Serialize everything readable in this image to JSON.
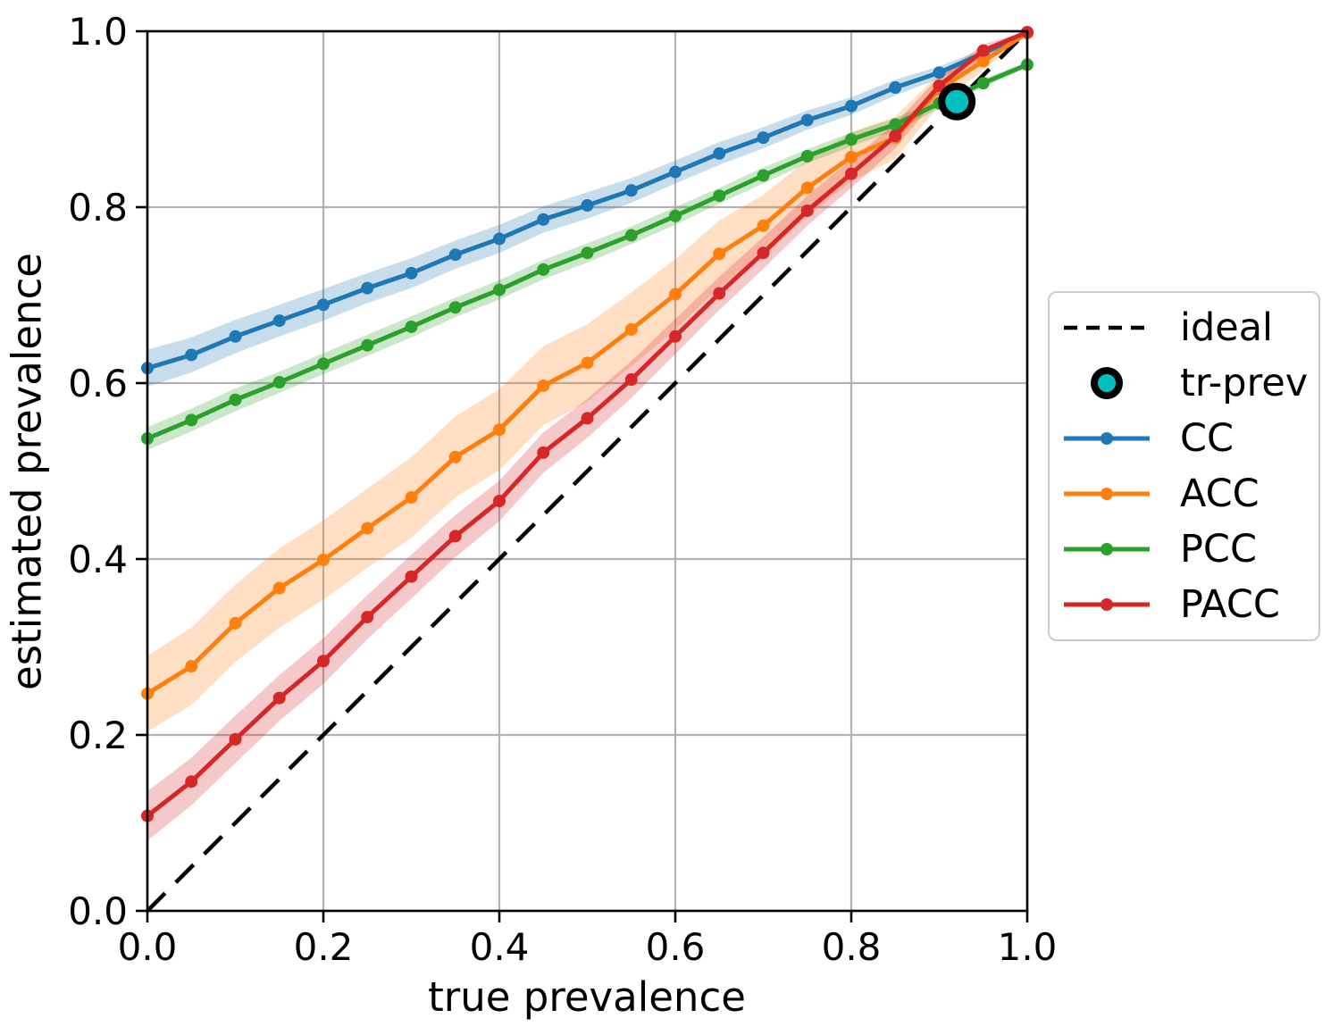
{
  "figure": {
    "background": "#ffffff"
  },
  "chart_data": {
    "type": "line",
    "title": "",
    "xlabel": "true prevalence",
    "ylabel": "estimated prevalence",
    "xlim": [
      0.0,
      1.0
    ],
    "ylim": [
      0.0,
      1.0
    ],
    "grid": true,
    "xticks": [
      "0.0",
      "0.2",
      "0.4",
      "0.6",
      "0.8",
      "1.0"
    ],
    "yticks": [
      "0.0",
      "0.2",
      "0.4",
      "0.6",
      "0.8",
      "1.0"
    ],
    "tick_values": [
      0.0,
      0.2,
      0.4,
      0.6,
      0.8,
      1.0
    ],
    "x": [
      0.0,
      0.05,
      0.1,
      0.15,
      0.2,
      0.25,
      0.3,
      0.35,
      0.4,
      0.45,
      0.5,
      0.55,
      0.6,
      0.65,
      0.7,
      0.75,
      0.8,
      0.85,
      0.9,
      0.95,
      1.0
    ],
    "series": [
      {
        "name": "CC",
        "color": "#1f77b4",
        "values": [
          0.617,
          0.632,
          0.653,
          0.671,
          0.689,
          0.708,
          0.725,
          0.746,
          0.764,
          0.786,
          0.802,
          0.819,
          0.84,
          0.861,
          0.879,
          0.899,
          0.915,
          0.936,
          0.953,
          0.975,
          0.998
        ],
        "band": [
          0.021,
          0.02,
          0.019,
          0.018,
          0.018,
          0.017,
          0.017,
          0.016,
          0.016,
          0.015,
          0.015,
          0.014,
          0.013,
          0.013,
          0.012,
          0.011,
          0.01,
          0.009,
          0.007,
          0.005,
          0.002
        ]
      },
      {
        "name": "ACC",
        "color": "#ff7f0e",
        "values": [
          0.247,
          0.278,
          0.327,
          0.367,
          0.399,
          0.435,
          0.47,
          0.516,
          0.547,
          0.597,
          0.623,
          0.661,
          0.701,
          0.747,
          0.779,
          0.822,
          0.857,
          0.879,
          0.934,
          0.966,
          0.998
        ],
        "band": [
          0.043,
          0.044,
          0.044,
          0.045,
          0.045,
          0.045,
          0.046,
          0.046,
          0.046,
          0.045,
          0.044,
          0.042,
          0.04,
          0.038,
          0.035,
          0.032,
          0.028,
          0.024,
          0.018,
          0.01,
          0.003
        ]
      },
      {
        "name": "PCC",
        "color": "#2ca02c",
        "values": [
          0.537,
          0.558,
          0.581,
          0.601,
          0.622,
          0.643,
          0.664,
          0.686,
          0.706,
          0.729,
          0.748,
          0.768,
          0.79,
          0.813,
          0.836,
          0.858,
          0.877,
          0.894,
          0.918,
          0.941,
          0.962
        ],
        "band": [
          0.013,
          0.013,
          0.013,
          0.012,
          0.012,
          0.012,
          0.012,
          0.011,
          0.011,
          0.011,
          0.011,
          0.01,
          0.01,
          0.009,
          0.009,
          0.008,
          0.008,
          0.007,
          0.006,
          0.005,
          0.003
        ]
      },
      {
        "name": "PACC",
        "color": "#d62728",
        "values": [
          0.108,
          0.147,
          0.195,
          0.242,
          0.284,
          0.334,
          0.38,
          0.426,
          0.466,
          0.521,
          0.56,
          0.604,
          0.653,
          0.702,
          0.748,
          0.796,
          0.838,
          0.881,
          0.938,
          0.978,
          0.999
        ],
        "band": [
          0.028,
          0.027,
          0.027,
          0.026,
          0.026,
          0.025,
          0.025,
          0.024,
          0.023,
          0.023,
          0.022,
          0.021,
          0.02,
          0.019,
          0.018,
          0.017,
          0.016,
          0.014,
          0.011,
          0.007,
          0.002
        ]
      }
    ],
    "ideal_line": {
      "label": "ideal",
      "from": [
        0.0,
        0.0
      ],
      "to": [
        1.0,
        1.0
      ],
      "style": "dashed",
      "color": "#000000"
    },
    "tr_prev_marker": {
      "label": "tr-prev",
      "x": 0.92,
      "y": 0.92,
      "fill": "#00bfbf",
      "edge": "#000000"
    },
    "legend": {
      "position": "right",
      "items": [
        "ideal",
        "tr-prev",
        "CC",
        "ACC",
        "PCC",
        "PACC"
      ]
    }
  },
  "colors": {
    "grid": "#b2b2b2",
    "spine": "#000000",
    "text": "#000000",
    "band_opacity": 0.25
  }
}
